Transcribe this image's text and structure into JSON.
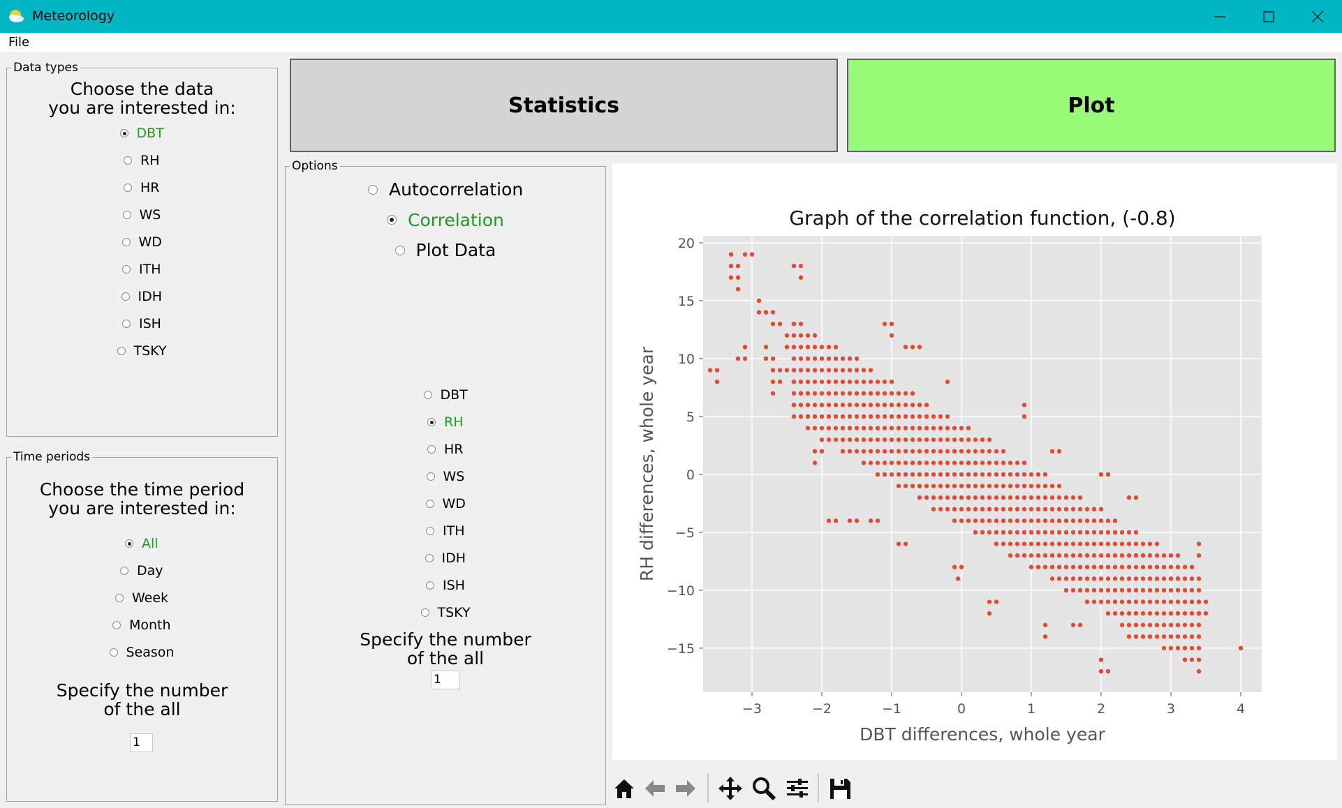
{
  "window": {
    "title": "Meteorology"
  },
  "menu": {
    "file": "File"
  },
  "data_types": {
    "legend": "Data types",
    "prompt_line1": "Choose the data",
    "prompt_line2": "you are interested in:",
    "options": [
      "DBT",
      "RH",
      "HR",
      "WS",
      "WD",
      "ITH",
      "IDH",
      "ISH",
      "TSKY"
    ],
    "selected": "DBT"
  },
  "time_periods": {
    "legend": "Time periods",
    "prompt_line1": "Choose the time period",
    "prompt_line2": "you are interested in:",
    "options": [
      "All",
      "Day",
      "Week",
      "Month",
      "Season"
    ],
    "selected": "All",
    "number_prompt_line1": "Specify the number",
    "number_prompt_line2": "of the all",
    "number_value": "1"
  },
  "buttons": {
    "statistics": "Statistics",
    "plot": "Plot",
    "plot_color": "#98fb78"
  },
  "options": {
    "legend": "Options",
    "modes": [
      "Autocorrelation",
      "Correlation",
      "Plot Data"
    ],
    "selected_mode": "Correlation",
    "second_var_options": [
      "DBT",
      "RH",
      "HR",
      "WS",
      "WD",
      "ITH",
      "IDH",
      "ISH",
      "TSKY"
    ],
    "second_var_selected": "RH",
    "number_prompt_line1": "Specify the number",
    "number_prompt_line2": "of the all",
    "number_value": "1"
  },
  "toolbar": {
    "icons": [
      "home-icon",
      "back-arrow-icon",
      "forward-arrow-icon",
      "pan-icon",
      "zoom-icon",
      "configure-subplots-icon",
      "save-icon"
    ]
  },
  "chart_data": {
    "type": "scatter",
    "title": "Graph of the correlation function, (-0.8)",
    "xlabel": "DBT differences, whole year",
    "ylabel": "RH differences, whole year",
    "xlim": [
      -3.7,
      4.3
    ],
    "ylim": [
      -18.8,
      20.6
    ],
    "xticks": [
      -3,
      -2,
      -1,
      0,
      1,
      2,
      3,
      4
    ],
    "yticks": [
      -15,
      -10,
      -5,
      0,
      5,
      10,
      15,
      20
    ],
    "xtick_labels": [
      "−3",
      "−2",
      "−1",
      "0",
      "1",
      "2",
      "3",
      "4"
    ],
    "ytick_labels": [
      "−15",
      "−10",
      "−5",
      "0",
      "5",
      "10",
      "15",
      "20"
    ],
    "grid": true,
    "point_color": "#e24a33",
    "background": "#e5e5e5",
    "points": [
      [
        -3.6,
        9
      ],
      [
        -3.5,
        9
      ],
      [
        -3.5,
        8
      ],
      [
        -3.3,
        19
      ],
      [
        -3.3,
        18
      ],
      [
        -3.3,
        17
      ],
      [
        -3.2,
        18
      ],
      [
        -3.2,
        17
      ],
      [
        -3.2,
        16
      ],
      [
        -3.1,
        19
      ],
      [
        -3.0,
        19
      ],
      [
        -2.3,
        18
      ],
      [
        -2.3,
        17
      ],
      [
        -2.4,
        18
      ],
      [
        -3.2,
        10
      ],
      [
        -3.1,
        10
      ],
      [
        -3.1,
        11
      ],
      [
        -2.9,
        15
      ],
      [
        -2.9,
        14
      ],
      [
        -2.8,
        14
      ],
      [
        -2.7,
        14
      ],
      [
        -2.7,
        13
      ],
      [
        -2.6,
        13
      ],
      [
        -2.8,
        10
      ],
      [
        -2.8,
        11
      ],
      [
        -2.7,
        10
      ],
      [
        -2.7,
        9
      ],
      [
        -2.7,
        8
      ],
      [
        -2.7,
        7
      ],
      [
        -2.6,
        9
      ],
      [
        -2.6,
        8
      ],
      [
        -2.5,
        12
      ],
      [
        -2.5,
        11
      ],
      [
        -2.5,
        9
      ],
      [
        -2.4,
        8
      ],
      [
        -2.4,
        6
      ],
      [
        -2.3,
        7
      ],
      [
        -2.2,
        5
      ],
      [
        -2.1,
        2
      ],
      [
        -2.0,
        2
      ],
      [
        -2.1,
        1
      ],
      [
        -1.9,
        -4
      ],
      [
        -1.8,
        -4
      ],
      [
        -1.6,
        -4
      ],
      [
        -1.5,
        -4
      ],
      [
        -1.3,
        -4
      ],
      [
        -1.2,
        -4
      ],
      [
        -0.9,
        -6
      ],
      [
        -0.8,
        -6
      ],
      [
        -0.1,
        -8
      ],
      [
        -0.05,
        -9
      ],
      [
        0,
        -8
      ],
      [
        0.4,
        -11
      ],
      [
        0.4,
        -12
      ],
      [
        0.5,
        -11
      ],
      [
        0.9,
        6
      ],
      [
        0.9,
        5
      ],
      [
        -0.2,
        8
      ],
      [
        -1.0,
        13
      ],
      [
        -1.1,
        13
      ],
      [
        -1.0,
        12
      ],
      [
        -0.8,
        11
      ],
      [
        -0.7,
        11
      ],
      [
        -0.6,
        11
      ],
      [
        1.2,
        -13
      ],
      [
        1.2,
        -14
      ],
      [
        1.6,
        -13
      ],
      [
        1.7,
        -13
      ],
      [
        2.0,
        -16
      ],
      [
        2.0,
        -17
      ],
      [
        2.1,
        -17
      ],
      [
        4.0,
        -15
      ],
      [
        3.2,
        -16
      ],
      [
        3.2,
        -15
      ],
      [
        3.0,
        -9
      ],
      [
        3.1,
        -9
      ],
      [
        3.4,
        -6
      ],
      [
        3.4,
        -7
      ],
      [
        3.3,
        -11
      ],
      [
        3.4,
        -12
      ],
      [
        3.5,
        -11
      ],
      [
        3.5,
        -12
      ],
      [
        2.4,
        -14
      ],
      [
        2.5,
        -14
      ],
      [
        2.5,
        -13
      ],
      [
        2.4,
        -2
      ],
      [
        2.5,
        -2
      ],
      [
        2.0,
        0
      ],
      [
        2.1,
        0
      ],
      [
        1.3,
        2
      ],
      [
        1.4,
        2
      ]
    ],
    "dense_band": {
      "x_from": -2.4,
      "x_to": 3.4,
      "x_step": 0.1,
      "center_at_x0": 0,
      "slope": -3.7,
      "half_width": 4.5,
      "y_step": 1
    }
  }
}
